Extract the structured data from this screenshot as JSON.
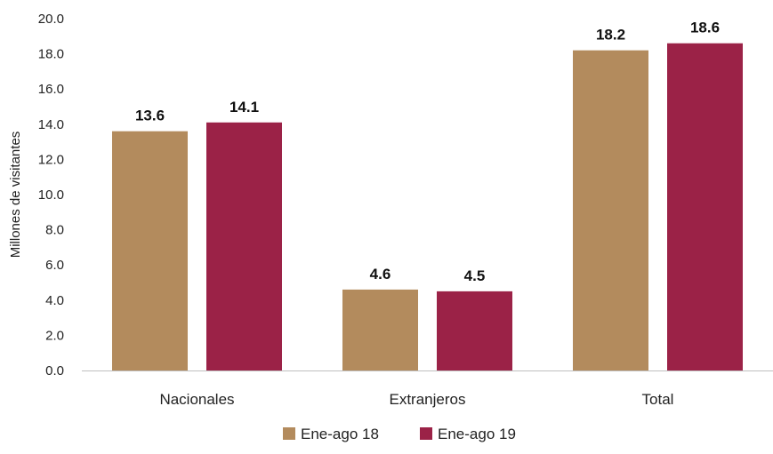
{
  "chart_data": {
    "type": "bar",
    "categories": [
      "Nacionales",
      "Extranjeros",
      "Total"
    ],
    "series": [
      {
        "name": "Ene-ago 18",
        "values": [
          13.6,
          4.6,
          18.2
        ],
        "color": "#b38b5d"
      },
      {
        "name": "Ene-ago 19",
        "values": [
          14.1,
          4.5,
          18.6
        ],
        "color": "#9b2247"
      }
    ],
    "data_labels": [
      [
        "13.6",
        "4.6",
        "18.2"
      ],
      [
        "14.1",
        "4.5",
        "18.6"
      ]
    ],
    "ylabel": "Millones de visitantes",
    "xlabel": "",
    "ylim": [
      0,
      20
    ],
    "yticks": [
      "0.0",
      "2.0",
      "4.0",
      "6.0",
      "8.0",
      "10.0",
      "12.0",
      "14.0",
      "16.0",
      "18.0",
      "20.0"
    ],
    "grid": false,
    "legend_position": "bottom"
  }
}
